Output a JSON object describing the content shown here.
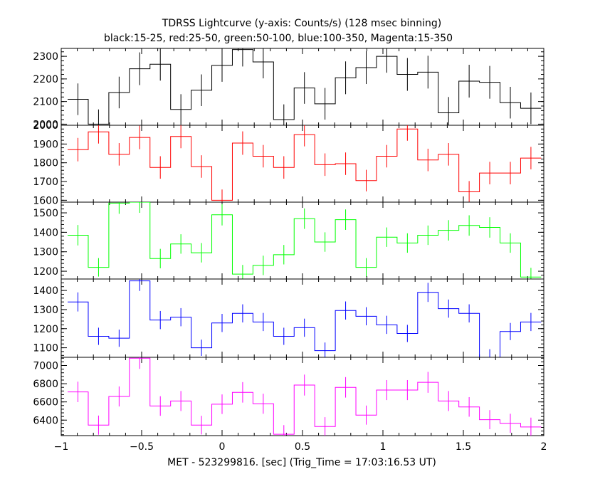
{
  "chart_data": {
    "type": "line",
    "title": "TDRSS Lightcurve (y-axis: Counts/s) (128 msec binning)",
    "subtitle": "black:15-25, red:25-50, green:50-100, blue:100-350, Magenta:15-350",
    "xlabel": "MET - 523299816. [sec] (Trig_Time = 17:03:16.53 UT)",
    "xlim": [
      -1,
      2
    ],
    "x_ticks": [
      -1,
      -0.5,
      0,
      0.5,
      1,
      1.5,
      2
    ],
    "x_tick_labels": [
      "−1",
      "−0.5",
      "0",
      "0.5",
      "1",
      "1.5",
      "2"
    ],
    "x_bin_edges": [
      -0.96,
      -0.832,
      -0.704,
      -0.576,
      -0.448,
      -0.32,
      -0.192,
      -0.064,
      0.064,
      0.192,
      0.32,
      0.448,
      0.576,
      0.704,
      0.832,
      0.96,
      1.088,
      1.216,
      1.344,
      1.472,
      1.6,
      1.728,
      1.856,
      1.984
    ],
    "panels": [
      {
        "name": "black:15-25",
        "color": "#000000",
        "ylim": [
          1995,
          2335
        ],
        "y_ticks": [
          2000,
          2100,
          2200,
          2300
        ],
        "values": [
          2110,
          2000,
          2140,
          2245,
          2265,
          2065,
          2150,
          2260,
          2330,
          2275,
          2020,
          2160,
          2090,
          2205,
          2250,
          2300,
          2220,
          2230,
          2050,
          2190,
          2185,
          2095,
          2070
        ],
        "errors": [
          140,
          130,
          140,
          145,
          145,
          135,
          140,
          145,
          150,
          145,
          135,
          140,
          140,
          145,
          145,
          145,
          145,
          145,
          140,
          145,
          145,
          140,
          140
        ]
      },
      {
        "name": "red:25-50",
        "color": "#ff0000",
        "ylim": [
          1590,
          2000
        ],
        "y_ticks": [
          1600,
          1700,
          1800,
          1900,
          2000
        ],
        "values": [
          1870,
          1965,
          1845,
          1935,
          1775,
          1940,
          1780,
          1600,
          1905,
          1835,
          1775,
          1950,
          1790,
          1795,
          1705,
          1835,
          1980,
          1815,
          1845,
          1645,
          1745,
          1745,
          1825
        ],
        "errors": [
          125,
          125,
          120,
          125,
          120,
          125,
          120,
          115,
          125,
          120,
          120,
          125,
          120,
          120,
          115,
          120,
          125,
          120,
          120,
          115,
          120,
          120,
          120
        ]
      },
      {
        "name": "green:50-100",
        "color": "#00ff00",
        "ylim": [
          1160,
          1555
        ],
        "y_ticks": [
          1200,
          1300,
          1400,
          1500
        ],
        "values": [
          1385,
          1220,
          1550,
          1555,
          1265,
          1340,
          1295,
          1490,
          1185,
          1230,
          1285,
          1470,
          1350,
          1465,
          1220,
          1375,
          1345,
          1385,
          1410,
          1435,
          1425,
          1345,
          1170
        ],
        "errors": [
          105,
          95,
          110,
          110,
          100,
          100,
          100,
          110,
          95,
          100,
          100,
          105,
          100,
          105,
          95,
          100,
          100,
          100,
          105,
          105,
          105,
          100,
          95
        ]
      },
      {
        "name": "blue:100-350",
        "color": "#0000ff",
        "ylim": [
          1050,
          1460
        ],
        "y_ticks": [
          1100,
          1200,
          1300,
          1400
        ],
        "values": [
          1340,
          1160,
          1150,
          1450,
          1245,
          1260,
          1100,
          1230,
          1280,
          1235,
          1160,
          1205,
          1085,
          1295,
          1265,
          1220,
          1175,
          1390,
          1305,
          1280,
          1050,
          1185,
          1235
        ],
        "errors": [
          100,
          90,
          90,
          105,
          95,
          95,
          85,
          95,
          95,
          95,
          90,
          95,
          85,
          95,
          95,
          95,
          90,
          100,
          95,
          95,
          85,
          90,
          95
        ]
      },
      {
        "name": "Magenta:15-350",
        "color": "#ff00ff",
        "ylim": [
          6230,
          7090
        ],
        "y_ticks": [
          6400,
          6600,
          6800,
          7000
        ],
        "values": [
          6710,
          6345,
          6660,
          7080,
          6555,
          6610,
          6345,
          6575,
          6705,
          6580,
          6245,
          6785,
          6330,
          6760,
          6455,
          6730,
          6730,
          6815,
          6610,
          6545,
          6405,
          6365,
          6325
        ],
        "errors": [
          225,
          210,
          220,
          235,
          215,
          220,
          205,
          215,
          225,
          220,
          200,
          230,
          205,
          225,
          210,
          220,
          220,
          230,
          220,
          215,
          210,
          210,
          205
        ]
      }
    ]
  }
}
